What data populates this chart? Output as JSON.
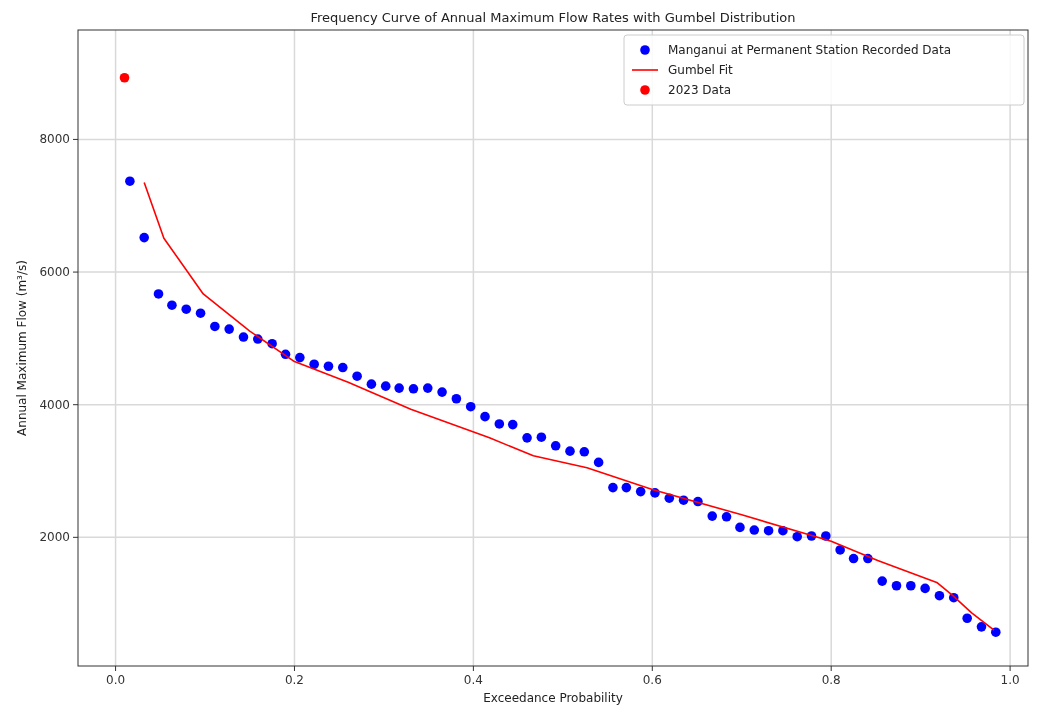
{
  "chart_data": {
    "type": "scatter",
    "title": "Frequency Curve of Annual Maximum Flow Rates with Gumbel Distribution",
    "xlabel": "Exceedance Probability",
    "ylabel": "Annual Maximum Flow (m³/s)",
    "xlim": [
      -0.042,
      1.02
    ],
    "ylim": [
      60,
      9650
    ],
    "xticks": [
      {
        "value": 0,
        "label": "0.0"
      },
      {
        "value": 0.2,
        "label": "0.2"
      },
      {
        "value": 0.4,
        "label": "0.4"
      },
      {
        "value": 0.6,
        "label": "0.6"
      },
      {
        "value": 0.8,
        "label": "0.8"
      },
      {
        "value": 1,
        "label": "1.0"
      }
    ],
    "yticks": [
      2000,
      4000,
      6000,
      8000
    ],
    "grid": true,
    "legend": "top right",
    "marker": "circle",
    "series": [
      {
        "name": "Manganui at Permanent Station Recorded Data",
        "color": "#0000ff",
        "x": [
          0.016,
          0.032,
          0.048,
          0.063,
          0.079,
          0.095,
          0.111,
          0.127,
          0.143,
          0.159,
          0.175,
          0.19,
          0.206,
          0.222,
          0.238,
          0.254,
          0.27,
          0.286,
          0.302,
          0.317,
          0.333,
          0.349,
          0.365,
          0.381,
          0.397,
          0.413,
          0.429,
          0.444,
          0.46,
          0.476,
          0.492,
          0.508,
          0.524,
          0.54,
          0.556,
          0.571,
          0.587,
          0.603,
          0.619,
          0.635,
          0.651,
          0.667,
          0.683,
          0.698,
          0.714,
          0.73,
          0.746,
          0.762,
          0.778,
          0.794,
          0.81,
          0.825,
          0.841,
          0.857,
          0.873,
          0.889,
          0.905,
          0.921,
          0.937,
          0.952,
          0.968,
          0.984
        ],
        "values": [
          7370,
          6520,
          5670,
          5500,
          5440,
          5380,
          5180,
          5140,
          5020,
          4990,
          4920,
          4760,
          4710,
          4610,
          4580,
          4560,
          4430,
          4310,
          4280,
          4250,
          4240,
          4250,
          4190,
          4090,
          3970,
          3820,
          3710,
          3700,
          3500,
          3510,
          3380,
          3300,
          3290,
          3130,
          2750,
          2750,
          2690,
          2670,
          2590,
          2560,
          2540,
          2320,
          2310,
          2150,
          2110,
          2100,
          2100,
          2010,
          2020,
          2020,
          1810,
          1680,
          1680,
          1340,
          1270,
          1270,
          1230,
          1120,
          1090,
          780,
          650,
          570
        ]
      },
      {
        "name": "Gumbel Fit",
        "type": "line",
        "marker": "none",
        "color": "#ff0000",
        "x": [
          0.032,
          0.054,
          0.098,
          0.15,
          0.2,
          0.26,
          0.33,
          0.418,
          0.467,
          0.527,
          0.6,
          0.7,
          0.8,
          0.852,
          0.918,
          0.936,
          0.957,
          0.982
        ],
        "values": [
          7350,
          6510,
          5670,
          5110,
          4650,
          4340,
          3930,
          3500,
          3230,
          3050,
          2720,
          2340,
          1940,
          1650,
          1320,
          1120,
          860,
          600
        ]
      },
      {
        "name": "2023 Data",
        "color": "#ff0000",
        "x": [
          0.01
        ],
        "values": [
          8930
        ]
      }
    ]
  }
}
